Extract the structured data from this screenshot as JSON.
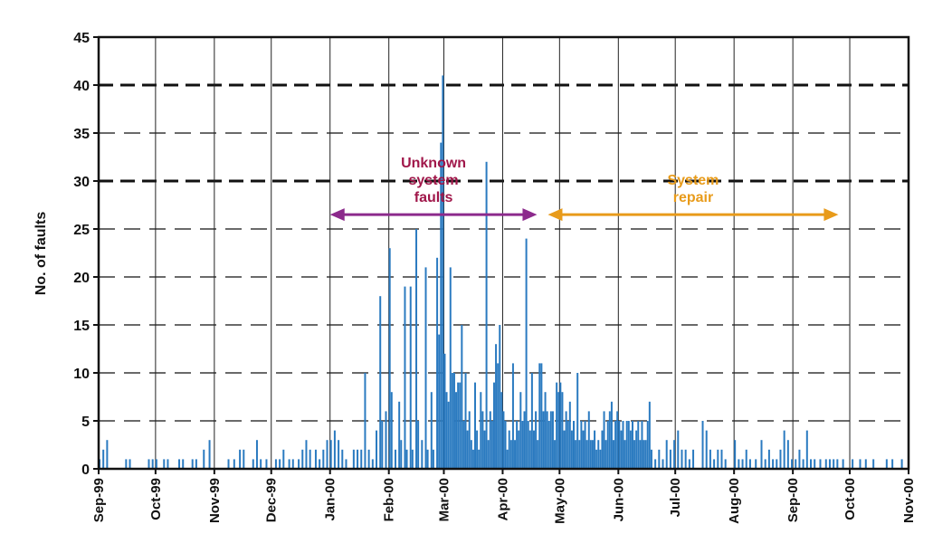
{
  "chart_data": {
    "type": "bar",
    "title": "",
    "xlabel": "",
    "ylabel": "No. of faults",
    "x_range": [
      "1999-09-01",
      "2000-11-01"
    ],
    "yticks": [
      "0",
      "5",
      "10",
      "15",
      "20",
      "25",
      "30",
      "35",
      "40",
      "45"
    ],
    "xticks": [
      {
        "label": "Sep-99",
        "date": "1999-09-01"
      },
      {
        "label": "Oct-99",
        "date": "1999-10-01"
      },
      {
        "label": "Nov-99",
        "date": "1999-11-01"
      },
      {
        "label": "Dec-99",
        "date": "1999-12-01"
      },
      {
        "label": "Jan-00",
        "date": "2000-01-01"
      },
      {
        "label": "Feb-00",
        "date": "2000-02-01"
      },
      {
        "label": "Mar-00",
        "date": "2000-03-01"
      },
      {
        "label": "Apr-00",
        "date": "2000-04-01"
      },
      {
        "label": "May-00",
        "date": "2000-05-01"
      },
      {
        "label": "Jun-00",
        "date": "2000-06-01"
      },
      {
        "label": "Jul-00",
        "date": "2000-07-01"
      },
      {
        "label": "Aug-00",
        "date": "2000-08-01"
      },
      {
        "label": "Sep-00",
        "date": "2000-09-01"
      },
      {
        "label": "Oct-00",
        "date": "2000-10-01"
      },
      {
        "label": "Nov-00",
        "date": "2000-11-01"
      }
    ],
    "grid": {
      "vertical": true,
      "horizontal": true,
      "heavy_dashed_at": [
        30,
        40
      ]
    },
    "bar_color": "#2a7ac0",
    "points": [
      [
        "1999-09-01",
        1
      ],
      [
        "1999-09-03",
        2
      ],
      [
        "1999-09-05",
        3
      ],
      [
        "1999-09-15",
        1
      ],
      [
        "1999-09-17",
        1
      ],
      [
        "1999-09-27",
        1
      ],
      [
        "1999-09-29",
        1
      ],
      [
        "1999-10-01",
        1
      ],
      [
        "1999-10-05",
        1
      ],
      [
        "1999-10-07",
        1
      ],
      [
        "1999-10-13",
        1
      ],
      [
        "1999-10-15",
        1
      ],
      [
        "1999-10-20",
        1
      ],
      [
        "1999-10-22",
        1
      ],
      [
        "1999-10-26",
        2
      ],
      [
        "1999-10-29",
        3
      ],
      [
        "1999-11-08",
        1
      ],
      [
        "1999-11-11",
        1
      ],
      [
        "1999-11-14",
        2
      ],
      [
        "1999-11-16",
        2
      ],
      [
        "1999-11-21",
        1
      ],
      [
        "1999-11-23",
        3
      ],
      [
        "1999-11-25",
        1
      ],
      [
        "1999-11-28",
        1
      ],
      [
        "1999-12-03",
        1
      ],
      [
        "1999-12-05",
        1
      ],
      [
        "1999-12-07",
        2
      ],
      [
        "1999-12-10",
        1
      ],
      [
        "1999-12-12",
        1
      ],
      [
        "1999-12-15",
        1
      ],
      [
        "1999-12-17",
        2
      ],
      [
        "1999-12-19",
        3
      ],
      [
        "1999-12-21",
        2
      ],
      [
        "1999-12-24",
        2
      ],
      [
        "1999-12-26",
        1
      ],
      [
        "1999-12-28",
        2
      ],
      [
        "1999-12-30",
        3
      ],
      [
        "2000-01-01",
        3
      ],
      [
        "2000-01-03",
        4
      ],
      [
        "2000-01-05",
        3
      ],
      [
        "2000-01-07",
        2
      ],
      [
        "2000-01-09",
        1
      ],
      [
        "2000-01-13",
        2
      ],
      [
        "2000-01-15",
        2
      ],
      [
        "2000-01-17",
        2
      ],
      [
        "2000-01-19",
        10
      ],
      [
        "2000-01-21",
        2
      ],
      [
        "2000-01-23",
        1
      ],
      [
        "2000-01-25",
        4
      ],
      [
        "2000-01-27",
        18
      ],
      [
        "2000-01-28",
        5
      ],
      [
        "2000-01-30",
        6
      ],
      [
        "2000-02-01",
        23
      ],
      [
        "2000-02-02",
        8
      ],
      [
        "2000-02-04",
        2
      ],
      [
        "2000-02-06",
        7
      ],
      [
        "2000-02-07",
        3
      ],
      [
        "2000-02-09",
        19
      ],
      [
        "2000-02-10",
        2
      ],
      [
        "2000-02-12",
        19
      ],
      [
        "2000-02-13",
        2
      ],
      [
        "2000-02-15",
        25
      ],
      [
        "2000-02-16",
        5
      ],
      [
        "2000-02-18",
        3
      ],
      [
        "2000-02-20",
        21
      ],
      [
        "2000-02-21",
        2
      ],
      [
        "2000-02-23",
        8
      ],
      [
        "2000-02-24",
        2
      ],
      [
        "2000-02-26",
        22
      ],
      [
        "2000-02-27",
        14
      ],
      [
        "2000-02-28",
        34
      ],
      [
        "2000-02-29",
        41
      ],
      [
        "2000-03-01",
        12
      ],
      [
        "2000-03-02",
        8
      ],
      [
        "2000-03-03",
        7
      ],
      [
        "2000-03-04",
        21
      ],
      [
        "2000-03-05",
        10
      ],
      [
        "2000-03-06",
        10
      ],
      [
        "2000-03-07",
        8
      ],
      [
        "2000-03-08",
        9
      ],
      [
        "2000-03-09",
        9
      ],
      [
        "2000-03-10",
        15
      ],
      [
        "2000-03-11",
        5
      ],
      [
        "2000-03-12",
        10
      ],
      [
        "2000-03-13",
        4
      ],
      [
        "2000-03-14",
        6
      ],
      [
        "2000-03-15",
        3
      ],
      [
        "2000-03-16",
        2
      ],
      [
        "2000-03-17",
        9
      ],
      [
        "2000-03-18",
        4
      ],
      [
        "2000-03-19",
        2
      ],
      [
        "2000-03-20",
        8
      ],
      [
        "2000-03-21",
        6
      ],
      [
        "2000-03-22",
        4
      ],
      [
        "2000-03-23",
        32
      ],
      [
        "2000-03-24",
        3
      ],
      [
        "2000-03-25",
        6
      ],
      [
        "2000-03-26",
        5
      ],
      [
        "2000-03-27",
        9
      ],
      [
        "2000-03-28",
        13
      ],
      [
        "2000-03-29",
        11
      ],
      [
        "2000-03-30",
        15
      ],
      [
        "2000-03-31",
        8
      ],
      [
        "2000-04-01",
        6
      ],
      [
        "2000-04-02",
        5
      ],
      [
        "2000-04-03",
        2
      ],
      [
        "2000-04-04",
        4
      ],
      [
        "2000-04-05",
        3
      ],
      [
        "2000-04-06",
        11
      ],
      [
        "2000-04-07",
        3
      ],
      [
        "2000-04-08",
        5
      ],
      [
        "2000-04-09",
        4
      ],
      [
        "2000-04-10",
        8
      ],
      [
        "2000-04-11",
        5
      ],
      [
        "2000-04-12",
        6
      ],
      [
        "2000-04-13",
        24
      ],
      [
        "2000-04-14",
        5
      ],
      [
        "2000-04-15",
        4
      ],
      [
        "2000-04-16",
        10
      ],
      [
        "2000-04-17",
        4
      ],
      [
        "2000-04-18",
        6
      ],
      [
        "2000-04-19",
        3
      ],
      [
        "2000-04-20",
        11
      ],
      [
        "2000-04-21",
        11
      ],
      [
        "2000-04-22",
        6
      ],
      [
        "2000-04-23",
        8
      ],
      [
        "2000-04-24",
        6
      ],
      [
        "2000-04-25",
        5
      ],
      [
        "2000-04-26",
        6
      ],
      [
        "2000-04-27",
        6
      ],
      [
        "2000-04-28",
        3
      ],
      [
        "2000-04-29",
        9
      ],
      [
        "2000-04-30",
        8
      ],
      [
        "2000-05-01",
        9
      ],
      [
        "2000-05-02",
        8
      ],
      [
        "2000-05-03",
        4
      ],
      [
        "2000-05-04",
        6
      ],
      [
        "2000-05-05",
        5
      ],
      [
        "2000-05-06",
        7
      ],
      [
        "2000-05-07",
        4
      ],
      [
        "2000-05-08",
        5
      ],
      [
        "2000-05-09",
        3
      ],
      [
        "2000-05-10",
        10
      ],
      [
        "2000-05-11",
        3
      ],
      [
        "2000-05-12",
        5
      ],
      [
        "2000-05-13",
        4
      ],
      [
        "2000-05-14",
        5
      ],
      [
        "2000-05-15",
        3
      ],
      [
        "2000-05-16",
        6
      ],
      [
        "2000-05-17",
        3
      ],
      [
        "2000-05-18",
        3
      ],
      [
        "2000-05-19",
        4
      ],
      [
        "2000-05-20",
        2
      ],
      [
        "2000-05-21",
        3
      ],
      [
        "2000-05-22",
        2
      ],
      [
        "2000-05-23",
        4
      ],
      [
        "2000-05-24",
        6
      ],
      [
        "2000-05-25",
        3
      ],
      [
        "2000-05-26",
        5
      ],
      [
        "2000-05-27",
        6
      ],
      [
        "2000-05-28",
        7
      ],
      [
        "2000-05-29",
        3
      ],
      [
        "2000-05-30",
        5
      ],
      [
        "2000-05-31",
        6
      ],
      [
        "2000-06-01",
        5
      ],
      [
        "2000-06-02",
        4
      ],
      [
        "2000-06-03",
        5
      ],
      [
        "2000-06-04",
        3
      ],
      [
        "2000-06-05",
        5
      ],
      [
        "2000-06-06",
        5
      ],
      [
        "2000-06-07",
        4
      ],
      [
        "2000-06-08",
        5
      ],
      [
        "2000-06-09",
        3
      ],
      [
        "2000-06-10",
        4
      ],
      [
        "2000-06-11",
        5
      ],
      [
        "2000-06-12",
        3
      ],
      [
        "2000-06-13",
        5
      ],
      [
        "2000-06-14",
        3
      ],
      [
        "2000-06-15",
        3
      ],
      [
        "2000-06-16",
        5
      ],
      [
        "2000-06-17",
        7
      ],
      [
        "2000-06-18",
        2
      ],
      [
        "2000-06-20",
        1
      ],
      [
        "2000-06-22",
        2
      ],
      [
        "2000-06-24",
        1
      ],
      [
        "2000-06-26",
        3
      ],
      [
        "2000-06-28",
        2
      ],
      [
        "2000-06-30",
        3
      ],
      [
        "2000-07-02",
        4
      ],
      [
        "2000-07-04",
        2
      ],
      [
        "2000-07-06",
        2
      ],
      [
        "2000-07-08",
        1
      ],
      [
        "2000-07-10",
        2
      ],
      [
        "2000-07-15",
        5
      ],
      [
        "2000-07-17",
        4
      ],
      [
        "2000-07-19",
        2
      ],
      [
        "2000-07-21",
        1
      ],
      [
        "2000-07-23",
        2
      ],
      [
        "2000-07-25",
        2
      ],
      [
        "2000-07-27",
        1
      ],
      [
        "2000-08-01",
        3
      ],
      [
        "2000-08-03",
        1
      ],
      [
        "2000-08-05",
        1
      ],
      [
        "2000-08-07",
        2
      ],
      [
        "2000-08-09",
        1
      ],
      [
        "2000-08-12",
        1
      ],
      [
        "2000-08-15",
        3
      ],
      [
        "2000-08-17",
        1
      ],
      [
        "2000-08-19",
        2
      ],
      [
        "2000-08-21",
        1
      ],
      [
        "2000-08-23",
        1
      ],
      [
        "2000-08-25",
        2
      ],
      [
        "2000-08-27",
        4
      ],
      [
        "2000-08-29",
        3
      ],
      [
        "2000-08-31",
        1
      ],
      [
        "2000-09-02",
        1
      ],
      [
        "2000-09-04",
        2
      ],
      [
        "2000-09-06",
        1
      ],
      [
        "2000-09-08",
        4
      ],
      [
        "2000-09-10",
        1
      ],
      [
        "2000-09-12",
        1
      ],
      [
        "2000-09-15",
        1
      ],
      [
        "2000-09-18",
        1
      ],
      [
        "2000-09-20",
        1
      ],
      [
        "2000-09-22",
        1
      ],
      [
        "2000-09-24",
        1
      ],
      [
        "2000-09-27",
        1
      ],
      [
        "2000-10-02",
        1
      ],
      [
        "2000-10-06",
        1
      ],
      [
        "2000-10-09",
        1
      ],
      [
        "2000-10-13",
        1
      ],
      [
        "2000-10-20",
        1
      ],
      [
        "2000-10-23",
        1
      ],
      [
        "2000-10-28",
        1
      ]
    ],
    "annotations": [
      {
        "text": [
          "Unknown",
          "system",
          "faults"
        ],
        "color": "#a0174a",
        "arrow_color": "#8c2a8c",
        "from": "2000-01-01",
        "to": "2000-04-22",
        "y": 26.5
      },
      {
        "text": [
          "System",
          "repair"
        ],
        "color": "#e89b1a",
        "arrow_color": "#e89b1a",
        "from": "2000-04-22",
        "to": "2000-09-25",
        "y": 26.5
      }
    ]
  }
}
